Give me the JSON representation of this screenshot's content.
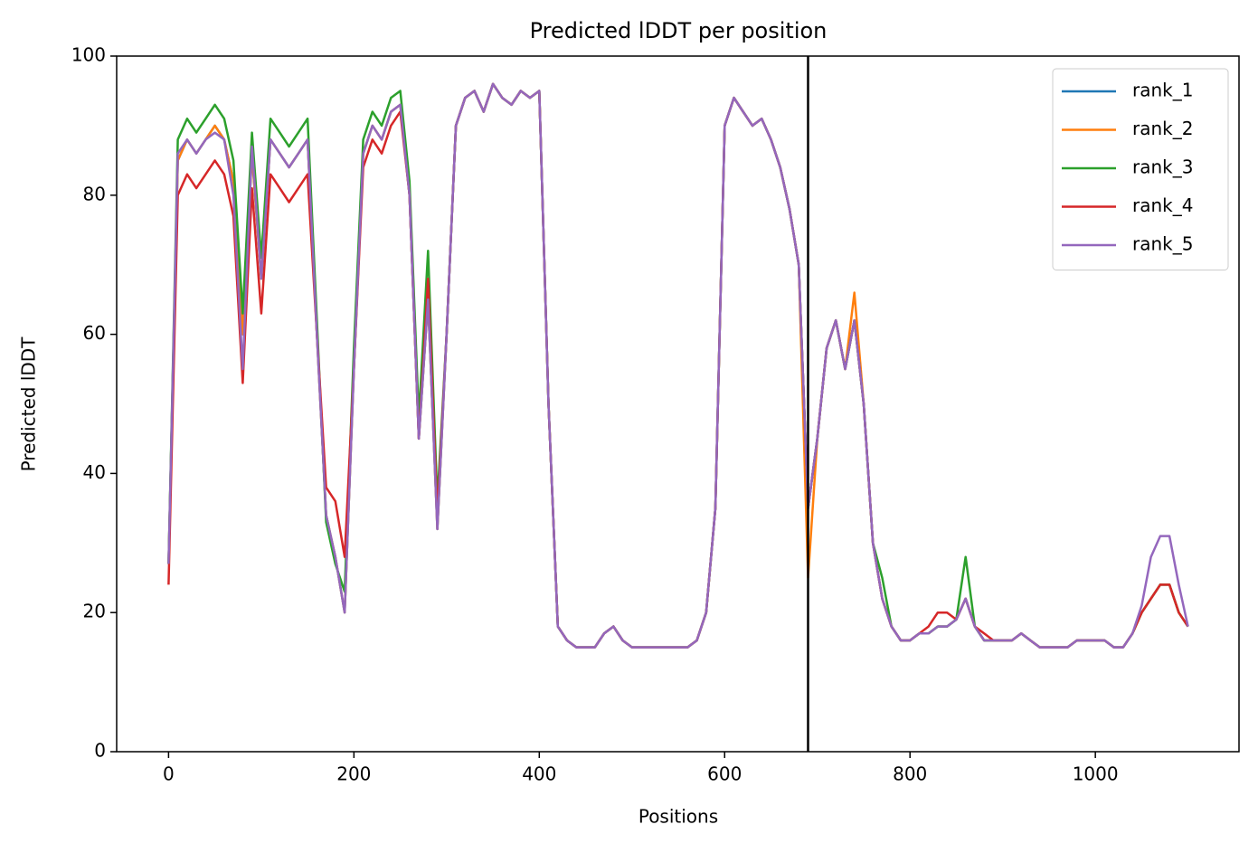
{
  "chart_data": {
    "type": "line",
    "title": "Predicted lDDT per position",
    "xlabel": "Positions",
    "ylabel": "Predicted lDDT",
    "x": [
      0,
      10,
      20,
      30,
      40,
      50,
      60,
      70,
      80,
      90,
      100,
      110,
      120,
      130,
      140,
      150,
      160,
      170,
      180,
      190,
      200,
      210,
      220,
      230,
      240,
      250,
      260,
      270,
      280,
      290,
      300,
      310,
      320,
      330,
      340,
      350,
      360,
      370,
      380,
      390,
      400,
      410,
      420,
      430,
      440,
      450,
      460,
      470,
      480,
      490,
      500,
      510,
      520,
      530,
      540,
      550,
      560,
      570,
      580,
      590,
      600,
      610,
      620,
      630,
      640,
      650,
      660,
      670,
      680,
      690,
      700,
      710,
      720,
      730,
      740,
      750,
      760,
      770,
      780,
      790,
      800,
      810,
      820,
      830,
      840,
      850,
      860,
      870,
      880,
      890,
      900,
      910,
      920,
      930,
      940,
      950,
      960,
      970,
      980,
      990,
      1000,
      1010,
      1020,
      1030,
      1040,
      1050,
      1060,
      1070,
      1080,
      1090,
      1100
    ],
    "series": [
      {
        "name": "rank_1",
        "color": "#1f77b4",
        "values": [
          27,
          85,
          88,
          86,
          88,
          90,
          88,
          82,
          60,
          86,
          68,
          88,
          86,
          84,
          86,
          88,
          60,
          34,
          28,
          20,
          55,
          86,
          90,
          88,
          92,
          93,
          80,
          45,
          65,
          32,
          60,
          90,
          94,
          95,
          92,
          96,
          94,
          93,
          95,
          94,
          95,
          50,
          18,
          16,
          15,
          15,
          15,
          17,
          18,
          16,
          15,
          15,
          15,
          15,
          15,
          15,
          15,
          16,
          20,
          35,
          90,
          94,
          92,
          90,
          91,
          88,
          84,
          78,
          70,
          35,
          45,
          58,
          62,
          55,
          62,
          50,
          30,
          22,
          18,
          16,
          16,
          17,
          17,
          18,
          18,
          19,
          22,
          18,
          16,
          16,
          16,
          16,
          17,
          16,
          15,
          15,
          15,
          15,
          16,
          16,
          16,
          16,
          15,
          15,
          17,
          20,
          22,
          24,
          24,
          20,
          18
        ]
      },
      {
        "name": "rank_2",
        "color": "#ff7f0e",
        "values": [
          27,
          85,
          88,
          86,
          88,
          90,
          88,
          82,
          60,
          86,
          68,
          88,
          86,
          84,
          86,
          88,
          60,
          34,
          28,
          20,
          55,
          86,
          90,
          88,
          92,
          93,
          80,
          45,
          65,
          32,
          60,
          90,
          94,
          95,
          92,
          96,
          94,
          93,
          95,
          94,
          95,
          50,
          18,
          16,
          15,
          15,
          15,
          17,
          18,
          16,
          15,
          15,
          15,
          15,
          15,
          15,
          15,
          16,
          20,
          35,
          90,
          94,
          92,
          90,
          91,
          88,
          84,
          78,
          70,
          25,
          45,
          58,
          62,
          55,
          66,
          50,
          30,
          22,
          18,
          16,
          16,
          17,
          17,
          18,
          18,
          19,
          22,
          18,
          16,
          16,
          16,
          16,
          17,
          16,
          15,
          15,
          15,
          15,
          16,
          16,
          16,
          16,
          15,
          15,
          17,
          20,
          22,
          24,
          24,
          20,
          18
        ]
      },
      {
        "name": "rank_3",
        "color": "#2ca02c",
        "values": [
          27,
          88,
          91,
          89,
          91,
          93,
          91,
          85,
          63,
          89,
          71,
          91,
          89,
          87,
          89,
          91,
          62,
          33,
          27,
          23,
          58,
          88,
          92,
          90,
          94,
          95,
          82,
          48,
          72,
          36,
          60,
          90,
          94,
          95,
          92,
          96,
          94,
          93,
          95,
          94,
          95,
          50,
          18,
          16,
          15,
          15,
          15,
          17,
          18,
          16,
          15,
          15,
          15,
          15,
          15,
          15,
          15,
          16,
          20,
          35,
          90,
          94,
          92,
          90,
          91,
          88,
          84,
          78,
          70,
          35,
          45,
          58,
          62,
          55,
          62,
          50,
          30,
          25,
          18,
          16,
          16,
          17,
          17,
          18,
          18,
          19,
          28,
          18,
          16,
          16,
          16,
          16,
          17,
          16,
          15,
          15,
          15,
          15,
          16,
          16,
          16,
          16,
          15,
          15,
          17,
          20,
          22,
          24,
          24,
          20,
          18
        ]
      },
      {
        "name": "rank_4",
        "color": "#d62728",
        "values": [
          24,
          80,
          83,
          81,
          83,
          85,
          83,
          77,
          53,
          81,
          63,
          83,
          81,
          79,
          81,
          83,
          60,
          38,
          36,
          28,
          55,
          84,
          88,
          86,
          90,
          92,
          80,
          45,
          68,
          34,
          60,
          90,
          94,
          95,
          92,
          96,
          94,
          93,
          95,
          94,
          95,
          50,
          18,
          16,
          15,
          15,
          15,
          17,
          18,
          16,
          15,
          15,
          15,
          15,
          15,
          15,
          15,
          16,
          20,
          35,
          90,
          94,
          92,
          90,
          91,
          88,
          84,
          78,
          70,
          35,
          45,
          58,
          62,
          55,
          62,
          50,
          30,
          22,
          18,
          16,
          16,
          17,
          18,
          20,
          20,
          19,
          22,
          18,
          17,
          16,
          16,
          16,
          17,
          16,
          15,
          15,
          15,
          15,
          16,
          16,
          16,
          16,
          15,
          15,
          17,
          20,
          22,
          24,
          24,
          20,
          18
        ]
      },
      {
        "name": "rank_5",
        "color": "#9467bd",
        "values": [
          27,
          86,
          88,
          86,
          88,
          89,
          88,
          80,
          55,
          87,
          68,
          88,
          86,
          84,
          86,
          88,
          60,
          34,
          28,
          20,
          55,
          86,
          90,
          88,
          92,
          93,
          80,
          45,
          65,
          32,
          60,
          90,
          94,
          95,
          92,
          96,
          94,
          93,
          95,
          94,
          95,
          50,
          18,
          16,
          15,
          15,
          15,
          17,
          18,
          16,
          15,
          15,
          15,
          15,
          15,
          15,
          15,
          16,
          20,
          35,
          90,
          94,
          92,
          90,
          91,
          88,
          84,
          78,
          70,
          35,
          45,
          58,
          62,
          55,
          62,
          50,
          30,
          22,
          18,
          16,
          16,
          17,
          17,
          18,
          18,
          19,
          22,
          18,
          16,
          16,
          16,
          16,
          17,
          16,
          15,
          15,
          15,
          15,
          16,
          16,
          16,
          16,
          15,
          15,
          17,
          21,
          28,
          31,
          31,
          24,
          18
        ]
      }
    ],
    "vlines": [
      690
    ],
    "vline_color": "#000000",
    "xlim": [
      -56,
      1155
    ],
    "ylim": [
      0,
      100
    ],
    "xticks": [
      0,
      200,
      400,
      600,
      800,
      1000
    ],
    "yticks": [
      0,
      20,
      40,
      60,
      80,
      100
    ],
    "grid": false,
    "legend": "upper right"
  }
}
